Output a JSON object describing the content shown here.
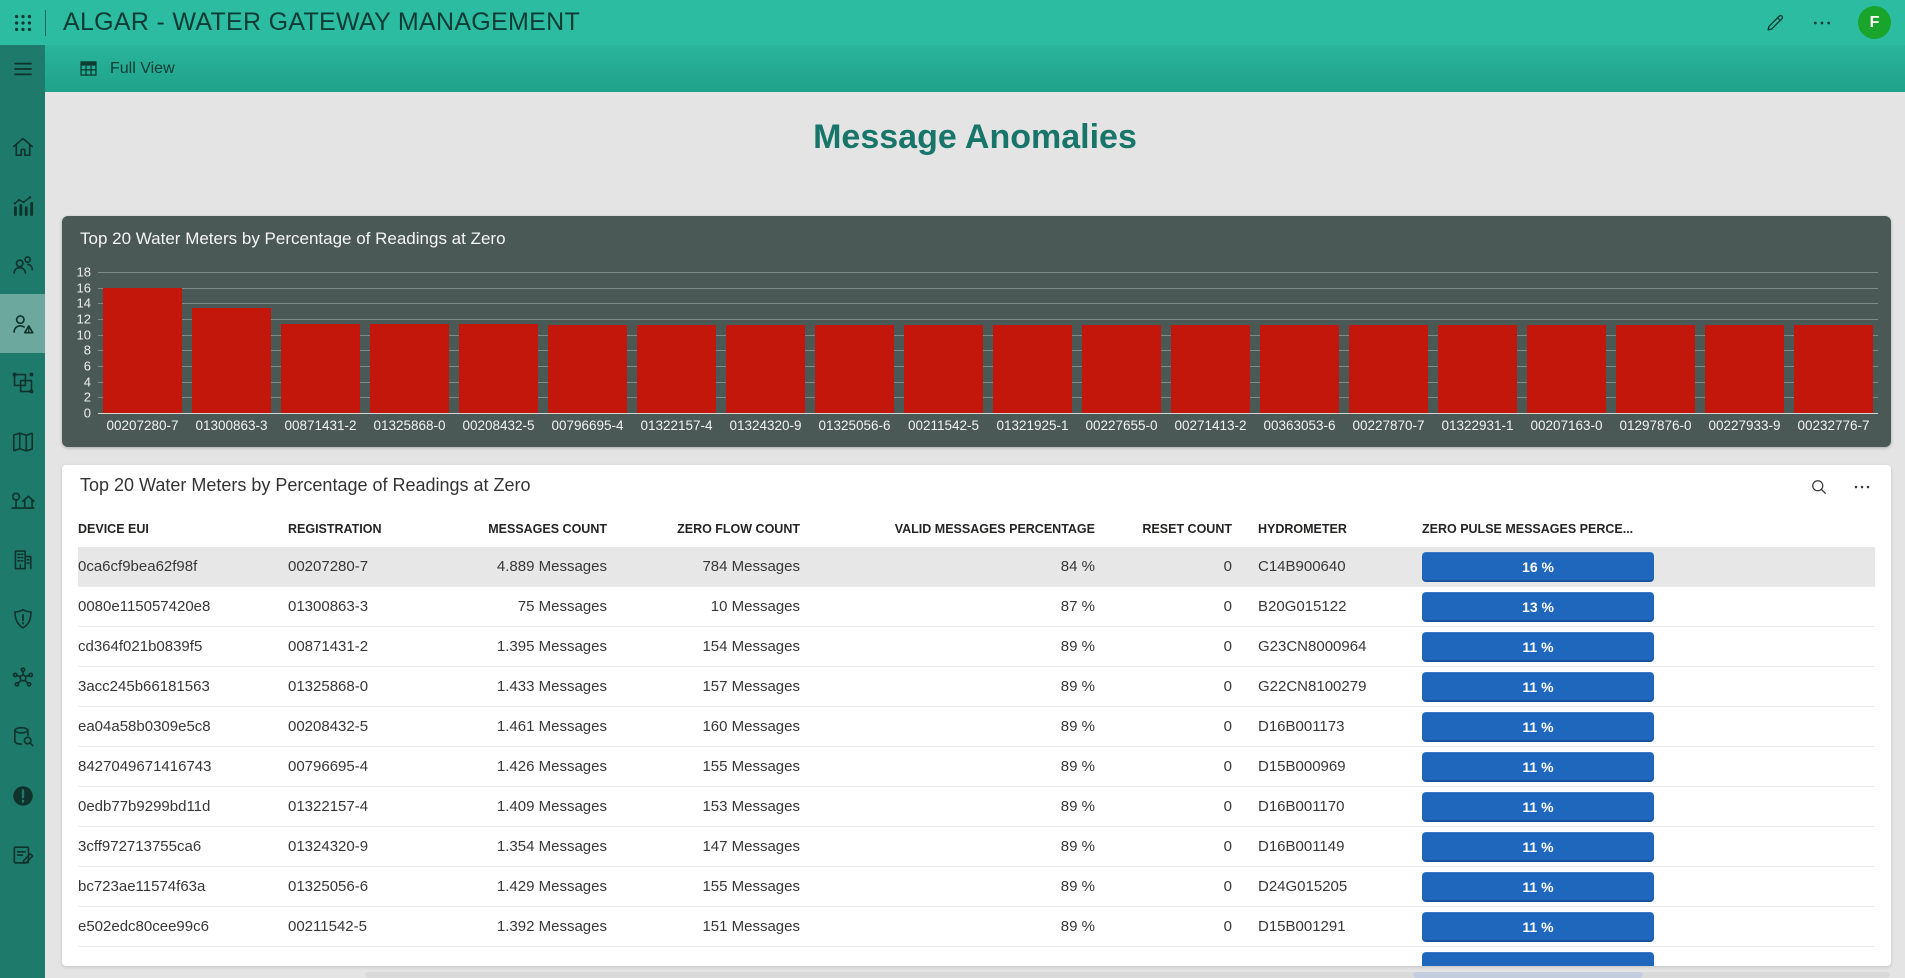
{
  "topbar": {
    "title": "ALGAR - WATER GATEWAY MANAGEMENT",
    "avatar_initial": "F",
    "icons": [
      "waffle-icon",
      "pencil-icon",
      "ellipsis-icon"
    ],
    "colors": {
      "background": "#2BBCA2",
      "avatar": "#19A42C"
    }
  },
  "navbar": {
    "label": "Full View",
    "icon": "table-view-icon"
  },
  "sidebar": {
    "background": "#1E7A6B",
    "items": [
      {
        "name": "home",
        "icon": "home-icon",
        "selected": false
      },
      {
        "name": "analytics",
        "icon": "analytics-icon",
        "selected": false
      },
      {
        "name": "users",
        "icon": "users-icon",
        "selected": false
      },
      {
        "name": "user-anomalies",
        "icon": "user-alert-icon",
        "selected": true
      },
      {
        "name": "group",
        "icon": "object-group-icon",
        "selected": false
      },
      {
        "name": "map",
        "icon": "map-icon",
        "selected": false
      },
      {
        "name": "residences",
        "icon": "house-tree-icon",
        "selected": false
      },
      {
        "name": "buildings",
        "icon": "building-icon",
        "selected": false
      },
      {
        "name": "security",
        "icon": "shield-alert-icon",
        "selected": false
      },
      {
        "name": "network",
        "icon": "network-icon",
        "selected": false
      },
      {
        "name": "data-search",
        "icon": "database-search-icon",
        "selected": false
      },
      {
        "name": "alerts",
        "icon": "alert-filled-icon",
        "selected": false
      },
      {
        "name": "notes",
        "icon": "compose-icon",
        "selected": false
      }
    ]
  },
  "page": {
    "title": "Message Anomalies",
    "title_color": "#17756A",
    "background": "#E4E4E4"
  },
  "chart_card": {
    "title": "Top 20 Water Meters by Percentage of Readings at Zero",
    "background": "#4A5955"
  },
  "chart_data": {
    "type": "bar",
    "title": "Top 20 Water Meters by Percentage of Readings at Zero",
    "categories": [
      "00207280-7",
      "01300863-3",
      "00871431-2",
      "01325868-0",
      "00208432-5",
      "00796695-4",
      "01322157-4",
      "01324320-9",
      "01325056-6",
      "00211542-5",
      "01321925-1",
      "00227655-0",
      "00271413-2",
      "00363053-6",
      "00227870-7",
      "01322931-1",
      "00207163-0",
      "01297876-0",
      "00227933-9",
      "00232776-7"
    ],
    "values": [
      16,
      13.4,
      11.3,
      11.3,
      11.3,
      11.2,
      11.2,
      11.2,
      11.2,
      11.2,
      11.2,
      11.2,
      11.2,
      11.2,
      11.2,
      11.2,
      11.2,
      11.2,
      11.2,
      11.2
    ],
    "xlabel": "",
    "ylabel": "",
    "ylim": [
      0,
      18
    ],
    "yticks": [
      18,
      16,
      14,
      12,
      10,
      8,
      6,
      4,
      2,
      0
    ],
    "grid": true,
    "legend": "none",
    "bar_color": "#C3170C"
  },
  "table_card": {
    "title": "Top 20 Water Meters by Percentage of Readings at Zero",
    "icons": [
      "search-icon",
      "ellipsis-icon"
    ],
    "pill_color": "#1F66BD",
    "columns": [
      {
        "label": "DEVICE EUI",
        "align": "left"
      },
      {
        "label": "REGISTRATION",
        "align": "left"
      },
      {
        "label": "MESSAGES COUNT",
        "align": "right"
      },
      {
        "label": "ZERO FLOW COUNT",
        "align": "right"
      },
      {
        "label": "VALID MESSAGES PERCENTAGE",
        "align": "right"
      },
      {
        "label": "RESET COUNT",
        "align": "right"
      },
      {
        "label": "HYDROMETER",
        "align": "left"
      },
      {
        "label": "ZERO PULSE MESSAGES PERCE...",
        "align": "left"
      }
    ],
    "rows": [
      [
        "0ca6cf9bea62f98f",
        "00207280-7",
        "4.889 Messages",
        "784 Messages",
        "84 %",
        "0",
        "C14B900640",
        "16 %"
      ],
      [
        "0080e115057420e8",
        "01300863-3",
        "75 Messages",
        "10 Messages",
        "87 %",
        "0",
        "B20G015122",
        "13 %"
      ],
      [
        "cd364f021b0839f5",
        "00871431-2",
        "1.395 Messages",
        "154 Messages",
        "89 %",
        "0",
        "G23CN8000964",
        "11 %"
      ],
      [
        "3acc245b66181563",
        "01325868-0",
        "1.433 Messages",
        "157 Messages",
        "89 %",
        "0",
        "G22CN8100279",
        "11 %"
      ],
      [
        "ea04a58b0309e5c8",
        "00208432-5",
        "1.461 Messages",
        "160 Messages",
        "89 %",
        "0",
        "D16B001173",
        "11 %"
      ],
      [
        "8427049671416743",
        "00796695-4",
        "1.426 Messages",
        "155 Messages",
        "89 %",
        "0",
        "D15B000969",
        "11 %"
      ],
      [
        "0edb77b9299bd11d",
        "01322157-4",
        "1.409 Messages",
        "153 Messages",
        "89 %",
        "0",
        "D16B001170",
        "11 %"
      ],
      [
        "3cff972713755ca6",
        "01324320-9",
        "1.354 Messages",
        "147 Messages",
        "89 %",
        "0",
        "D16B001149",
        "11 %"
      ],
      [
        "bc723ae11574f63a",
        "01325056-6",
        "1.429 Messages",
        "155 Messages",
        "89 %",
        "0",
        "D24G015205",
        "11 %"
      ],
      [
        "e502edc80cee99c6",
        "00211542-5",
        "1.392 Messages",
        "151 Messages",
        "89 %",
        "0",
        "D15B001291",
        "11 %"
      ]
    ],
    "has_partial_eleventh_row": true
  }
}
